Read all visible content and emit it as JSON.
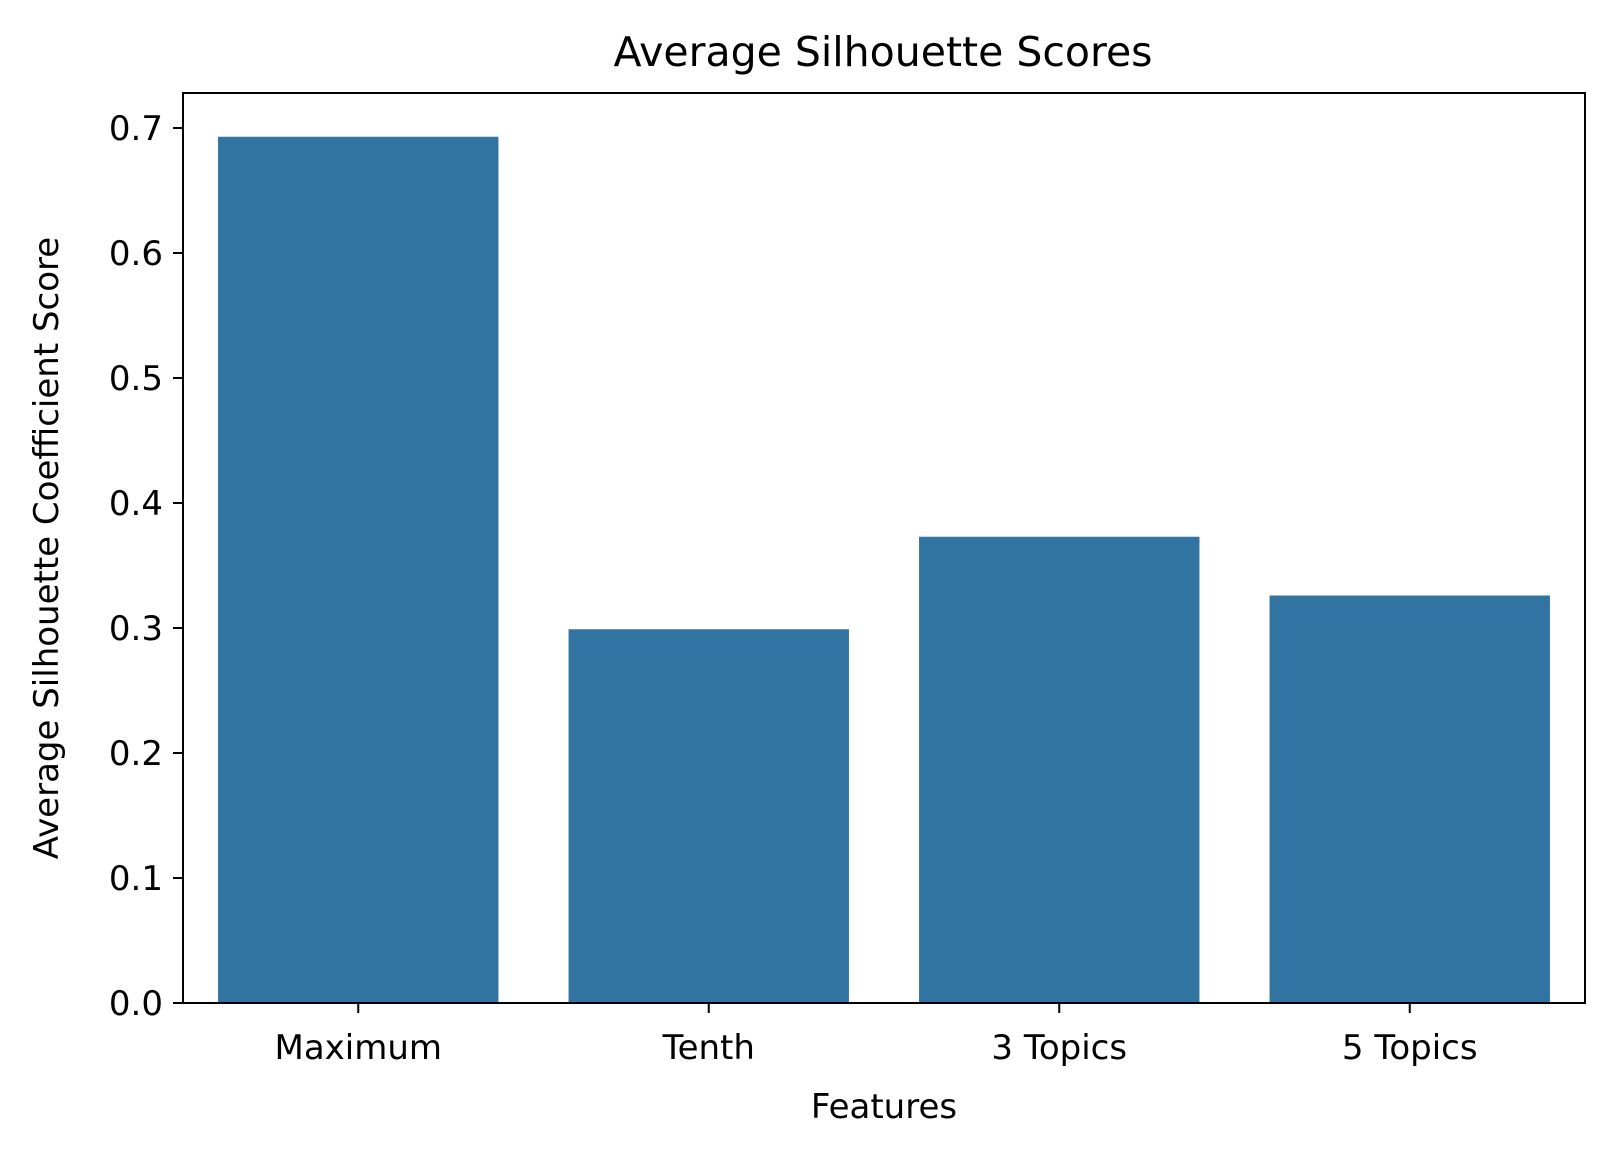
{
  "chart_data": {
    "type": "bar",
    "title": "Average Silhouette Scores",
    "xlabel": "Features",
    "ylabel": "Average Silhouette Coefficient Score",
    "categories": [
      "Maximum",
      "Tenth",
      "3 Topics",
      "5 Topics"
    ],
    "values": [
      0.693,
      0.299,
      0.373,
      0.326
    ],
    "ylim": [
      0.0,
      0.728
    ],
    "yticks": [
      "0.0",
      "0.1",
      "0.2",
      "0.3",
      "0.4",
      "0.5",
      "0.6",
      "0.7"
    ],
    "grid": false,
    "legend": "none",
    "bar_color": "#3274a1"
  }
}
